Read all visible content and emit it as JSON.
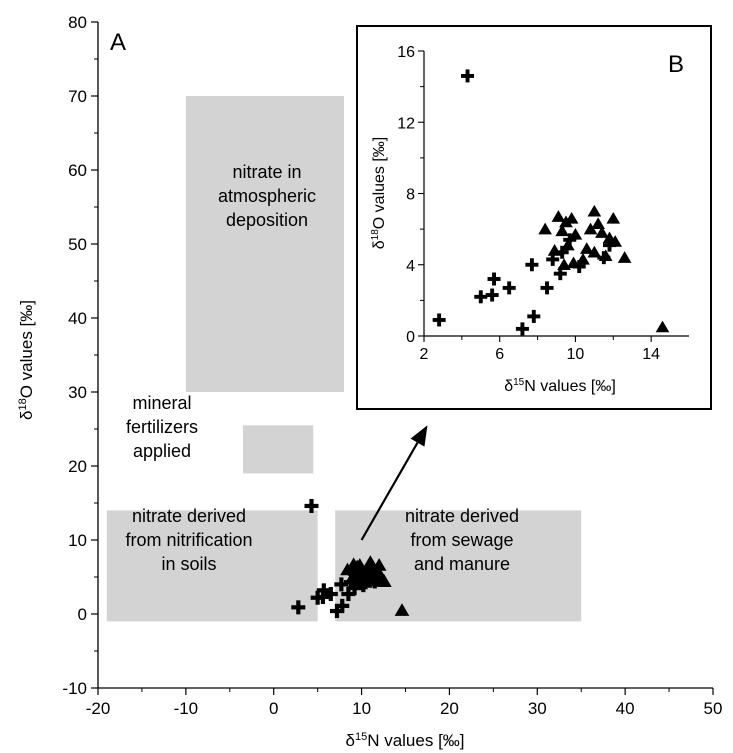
{
  "chart_data": [
    {
      "panel": "A",
      "type": "scatter",
      "xlabel_prefix": "δ",
      "xlabel_sup": "15",
      "xlabel_suffix": "N values [‰]",
      "ylabel_prefix": "δ",
      "ylabel_sup": "18",
      "ylabel_suffix": "O values [‰]",
      "xlim": [
        -20,
        50
      ],
      "ylim": [
        -10,
        80
      ],
      "xticks": [
        -20,
        -10,
        0,
        10,
        20,
        30,
        40,
        50
      ],
      "yticks": [
        -10,
        0,
        10,
        20,
        30,
        40,
        50,
        60,
        70,
        80
      ],
      "regions": [
        {
          "lines": [
            "nitrate in",
            "atmospheric",
            "deposition"
          ],
          "x": [
            -10,
            8
          ],
          "y": [
            30,
            70
          ]
        },
        {
          "lines": [
            "mineral",
            "fertilizers",
            "applied"
          ],
          "x": [
            -3.5,
            4.5
          ],
          "y": [
            19,
            25.5
          ]
        },
        {
          "lines": [
            "nitrate derived",
            "from nitrification",
            "in soils"
          ],
          "x": [
            -19,
            5
          ],
          "y": [
            -1,
            14
          ]
        },
        {
          "lines": [
            "nitrate derived",
            "from sewage",
            "and manure"
          ],
          "x": [
            7,
            35
          ],
          "y": [
            -1,
            14
          ]
        }
      ],
      "arrow": {
        "from": [
          10,
          10
        ],
        "to": [
          17.5,
          25.5
        ]
      },
      "series": [
        {
          "marker": "cross",
          "points": [
            [
              2.8,
              0.9
            ],
            [
              4.3,
              14.6
            ],
            [
              5.0,
              2.2
            ],
            [
              5.6,
              2.3
            ],
            [
              5.7,
              3.2
            ],
            [
              6.5,
              2.7
            ],
            [
              7.2,
              0.4
            ],
            [
              7.7,
              4.0
            ],
            [
              7.8,
              1.1
            ],
            [
              8.5,
              2.7
            ],
            [
              8.8,
              4.3
            ],
            [
              9.2,
              3.5
            ],
            [
              9.3,
              4.7
            ],
            [
              9.7,
              5.4
            ],
            [
              10.2,
              3.9
            ],
            [
              11.5,
              4.4
            ],
            [
              11.8,
              5.1
            ]
          ]
        },
        {
          "marker": "triangle",
          "points": [
            [
              8.4,
              6.0
            ],
            [
              8.9,
              4.8
            ],
            [
              9.1,
              6.7
            ],
            [
              9.3,
              5.9
            ],
            [
              9.4,
              4.0
            ],
            [
              9.5,
              6.4
            ],
            [
              9.6,
              5.1
            ],
            [
              9.8,
              6.6
            ],
            [
              9.9,
              4.1
            ],
            [
              10.0,
              5.7
            ],
            [
              10.4,
              4.3
            ],
            [
              10.6,
              4.9
            ],
            [
              10.8,
              6.0
            ],
            [
              11.0,
              7.0
            ],
            [
              11.0,
              4.7
            ],
            [
              11.2,
              6.3
            ],
            [
              11.4,
              5.8
            ],
            [
              11.6,
              4.5
            ],
            [
              11.8,
              5.5
            ],
            [
              12.0,
              6.6
            ],
            [
              12.1,
              5.3
            ],
            [
              12.6,
              4.4
            ],
            [
              14.6,
              0.5
            ]
          ]
        }
      ]
    },
    {
      "panel": "B",
      "type": "scatter",
      "xlabel_prefix": "δ",
      "xlabel_sup": "15",
      "xlabel_suffix": "N values [‰]",
      "ylabel_prefix": "δ",
      "ylabel_sup": "18",
      "ylabel_suffix": "O values [‰]",
      "xlim": [
        2,
        16
      ],
      "ylim": [
        0,
        16
      ],
      "xticks": [
        2,
        6,
        10,
        14
      ],
      "yticks": [
        0,
        4,
        8,
        12,
        16
      ]
    }
  ]
}
